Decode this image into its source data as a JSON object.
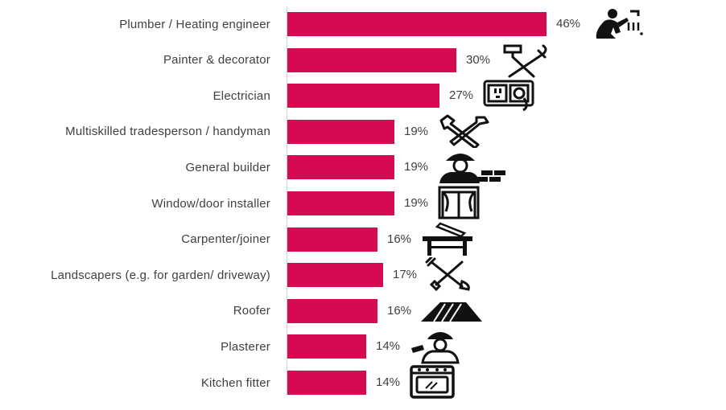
{
  "chart_data": {
    "type": "bar",
    "orientation": "horizontal",
    "categories": [
      "Plumber / Heating engineer",
      "Painter & decorator",
      "Electrician",
      "Multiskilled tradesperson / handyman",
      "General builder",
      "Window/door installer",
      "Carpenter/joiner",
      "Landscapers (e.g. for garden/ driveway)",
      "Roofer",
      "Plasterer",
      "Kitchen fitter"
    ],
    "values": [
      46,
      30,
      27,
      19,
      19,
      19,
      16,
      17,
      16,
      14,
      14
    ],
    "value_labels": [
      "46%",
      "30%",
      "27%",
      "19%",
      "19%",
      "19%",
      "16%",
      "17%",
      "16%",
      "14%",
      "14%"
    ],
    "unit": "%",
    "xlim": [
      0,
      100
    ],
    "grid": false,
    "bar_color": "#d40a52",
    "icons": [
      "plumber-icon",
      "paintbrush-roller-icon",
      "electric-socket-icon",
      "wrench-hammer-icon",
      "builder-bricks-icon",
      "window-icon",
      "saw-workbench-icon",
      "rake-shovel-icon",
      "roof-icon",
      "plasterer-icon",
      "oven-icon"
    ]
  }
}
